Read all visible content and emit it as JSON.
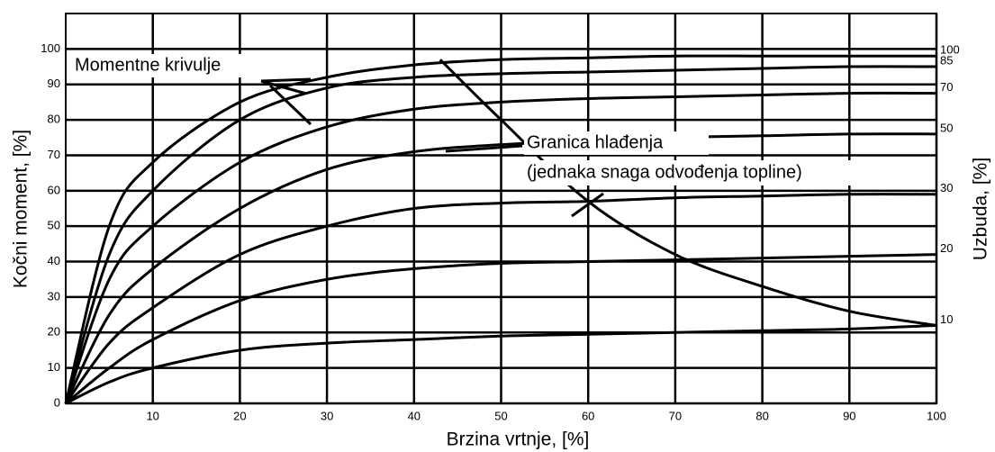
{
  "chart_data": {
    "type": "line",
    "x_label": "Brzina vrtnje, [%]",
    "y_label": "Kočni moment, [%]",
    "y2_label": "Uzbuda, [%]",
    "annotations": [
      "Momentne krivulje",
      "Granica hlađenja",
      "(jednaka snaga odvođenja topline)"
    ],
    "x": [
      0,
      5,
      10,
      20,
      30,
      40,
      50,
      60,
      70,
      80,
      90,
      100
    ],
    "series": [
      {
        "name": "100",
        "color": "#000000",
        "values": [
          0,
          50,
          68,
          85,
          92,
          95.5,
          97,
          97.5,
          98,
          98,
          98,
          98
        ]
      },
      {
        "name": "85",
        "color": "#000000",
        "values": [
          0,
          42,
          60,
          80,
          89,
          92,
          93,
          93.5,
          94,
          94.5,
          95,
          95
        ]
      },
      {
        "name": "70",
        "color": "#000000",
        "values": [
          0,
          35,
          50,
          68,
          78,
          83,
          85,
          86,
          86.5,
          87,
          87.5,
          87.5
        ]
      },
      {
        "name": "50",
        "color": "#000000",
        "values": [
          0,
          25,
          38,
          55,
          66,
          71,
          73,
          74,
          75,
          75.5,
          76,
          76
        ]
      },
      {
        "name": "30",
        "color": "#000000",
        "values": [
          0,
          17,
          27,
          42,
          50,
          55,
          56.5,
          57,
          58,
          58.5,
          59,
          59
        ]
      },
      {
        "name": "20",
        "color": "#000000",
        "values": [
          0,
          10,
          18,
          29,
          35,
          38,
          39.5,
          40,
          40.5,
          41,
          41.5,
          42
        ]
      },
      {
        "name": "10",
        "color": "#000000",
        "values": [
          0,
          6,
          10,
          15,
          17,
          18,
          19,
          19.5,
          20,
          20.5,
          21,
          22
        ]
      }
    ],
    "cooling_limit": {
      "color": "#000000",
      "x": [
        43,
        50,
        60,
        70,
        80,
        90,
        100
      ],
      "values": [
        97,
        80,
        57,
        42,
        33,
        26,
        22
      ]
    },
    "xlim": [
      0,
      100
    ],
    "xticks": [
      10,
      20,
      30,
      40,
      50,
      60,
      70,
      80,
      90,
      100
    ],
    "ylim": [
      0,
      110
    ],
    "yticks": [
      0,
      10,
      20,
      30,
      40,
      50,
      60,
      70,
      80,
      90,
      100
    ],
    "grid": true
  }
}
